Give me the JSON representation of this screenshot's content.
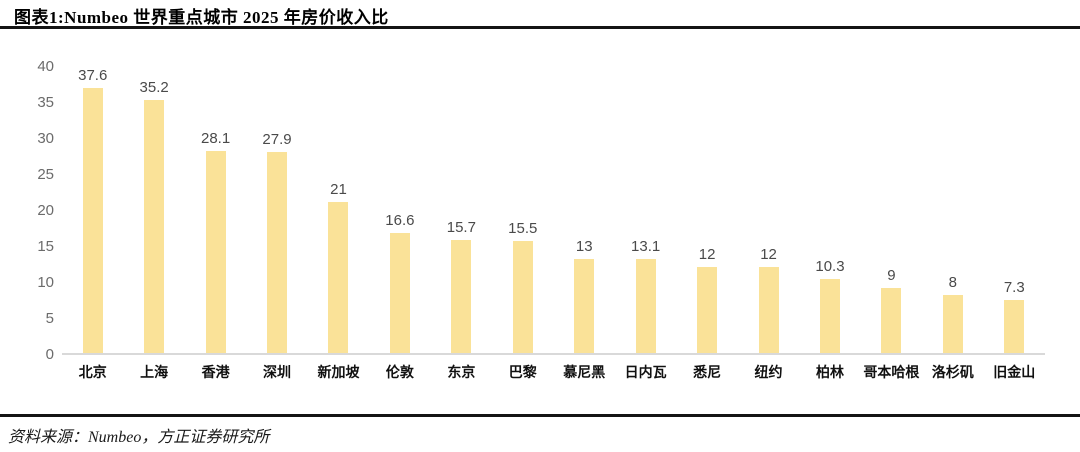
{
  "header": {
    "title": "图表1:Numbeo 世界重点城市 2025 年房价收入比"
  },
  "footer": {
    "source": "资料来源：Numbeo，方正证券研究所"
  },
  "colors": {
    "bar_fill": "#FAE298",
    "value_label": "#4a4a4a",
    "y_tick_label": "#6b6b6b",
    "x_axis_label": "#111111",
    "axis_line": "#d9d9d9",
    "rule_line": "#141414",
    "background": "#ffffff"
  },
  "chart_data": {
    "type": "bar",
    "title": "图表1:Numbeo 世界重点城市 2025 年房价收入比",
    "categories": [
      "北京",
      "上海",
      "香港",
      "深圳",
      "新加坡",
      "伦敦",
      "东京",
      "巴黎",
      "慕尼黑",
      "日内瓦",
      "悉尼",
      "纽约",
      "柏林",
      "哥本哈根",
      "洛杉矶",
      "旧金山"
    ],
    "values": [
      37.6,
      35.2,
      28.1,
      27.9,
      21,
      16.6,
      15.7,
      15.5,
      13,
      13.1,
      12,
      12,
      10.3,
      9,
      8,
      7.3
    ],
    "value_labels": [
      "37.6",
      "35.2",
      "28.1",
      "27.9",
      "21",
      "16.6",
      "15.7",
      "15.5",
      "13",
      "13.1",
      "12",
      "12",
      "10.3",
      "9",
      "8",
      "7.3"
    ],
    "xlabel": "",
    "ylabel": "",
    "ylim": [
      0,
      40
    ],
    "yticks": [
      0,
      5,
      10,
      15,
      20,
      25,
      30,
      35,
      40
    ],
    "grid": false,
    "legend": null,
    "bar_color": "#FAE298",
    "source": "资料来源：Numbeo，方正证券研究所"
  }
}
